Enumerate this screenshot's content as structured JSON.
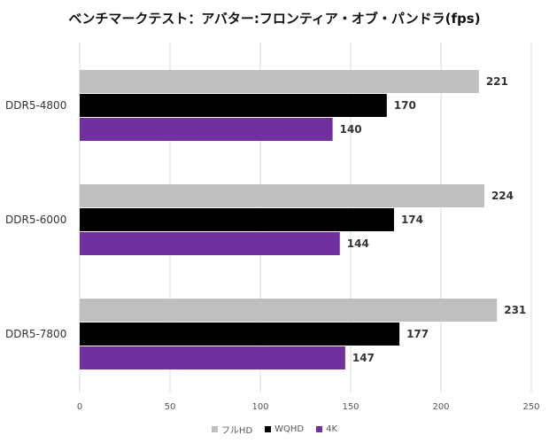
{
  "chart_data": {
    "type": "bar",
    "orientation": "horizontal",
    "title": "ベンチマークテスト：アバター:フロンティア・オブ・パンドラ(fps)",
    "categories": [
      "DDR5-4800",
      "DDR5-6000",
      "DDR5-7800"
    ],
    "series": [
      {
        "name": "フルHD",
        "color": "#bfbfbf",
        "values": [
          221,
          224,
          231
        ]
      },
      {
        "name": "WQHD",
        "color": "#000000",
        "values": [
          170,
          174,
          177
        ]
      },
      {
        "name": "4K",
        "color": "#7030a0",
        "values": [
          140,
          144,
          147
        ]
      }
    ],
    "xlim": [
      0,
      250
    ],
    "xticks": [
      "0",
      "50",
      "100",
      "150",
      "200",
      "250"
    ],
    "grid": true,
    "legend": "bottom"
  }
}
